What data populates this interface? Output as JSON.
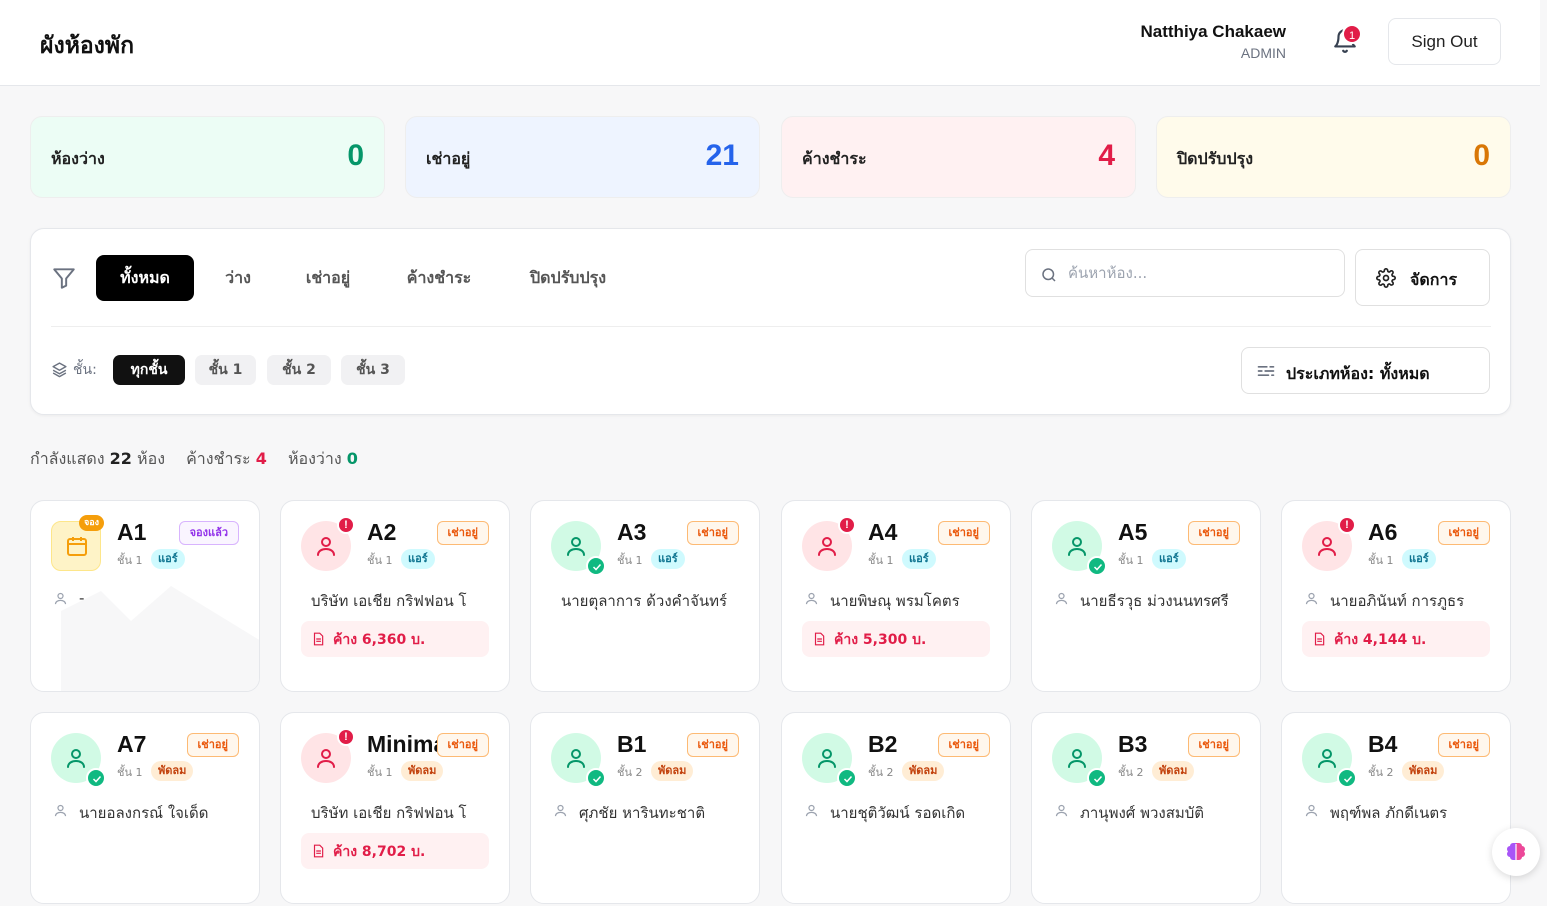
{
  "header": {
    "title": "ผังห้องพัก",
    "user_name": "Natthiya Chakaew",
    "user_role": "ADMIN",
    "notification_count": "1",
    "sign_out_label": "Sign Out"
  },
  "stats": [
    {
      "label": "ห้องว่าง",
      "value": "0",
      "color": "#059669",
      "bg": "#ecfdf5"
    },
    {
      "label": "เช่าอยู่",
      "value": "21",
      "color": "#2563eb",
      "bg": "#eef4ff"
    },
    {
      "label": "ค้างชำระ",
      "value": "4",
      "color": "#e11d48",
      "bg": "#fff1f2"
    },
    {
      "label": "ปิดปรับปรุง",
      "value": "0",
      "color": "#d97706",
      "bg": "#fffbeb"
    }
  ],
  "filters": {
    "tabs": [
      "ทั้งหมด",
      "ว่าง",
      "เช่าอยู่",
      "ค้างชำระ",
      "ปิดปรับปรุง"
    ],
    "active_tab": "ทั้งหมด",
    "search_placeholder": "ค้นหาห้อง...",
    "manage_label": "จัดการ",
    "floor_label": "ชั้น:",
    "floor_chips": [
      "ทุกชั้น",
      "ชั้น 1",
      "ชั้น 2",
      "ชั้น 3"
    ],
    "active_floor": "ทุกชั้น",
    "room_type_label": "ประเภทห้อง: ทั้งหมด"
  },
  "summary": {
    "showing_prefix": "กำลังแสดง",
    "showing_count": "22",
    "showing_suffix": "ห้อง",
    "overdue_label": "ค้างชำระ",
    "overdue_count": "4",
    "vacant_label": "ห้องว่าง",
    "vacant_count": "0"
  },
  "rooms": [
    {
      "code": "A1",
      "status": "จองแล้ว",
      "floor": "ชั้น 1",
      "type": "แอร์",
      "tenant": "-",
      "avatar": "booked",
      "book_tag": "จอง"
    },
    {
      "code": "A2",
      "status": "เช่าอยู่",
      "floor": "ชั้น 1",
      "type": "แอร์",
      "tenant": "บริษัท เอเชีย กริฟฟอน โ",
      "avatar": "overdue",
      "debt": "ค้าง 6,360 บ."
    },
    {
      "code": "A3",
      "status": "เช่าอยู่",
      "floor": "ชั้น 1",
      "type": "แอร์",
      "tenant": "นายตุลาการ ด้วงคำจันทร์",
      "avatar": "ok"
    },
    {
      "code": "A4",
      "status": "เช่าอยู่",
      "floor": "ชั้น 1",
      "type": "แอร์",
      "tenant": "นายพิษณุ พรมโคตร",
      "avatar": "overdue",
      "debt": "ค้าง 5,300 บ."
    },
    {
      "code": "A5",
      "status": "เช่าอยู่",
      "floor": "ชั้น 1",
      "type": "แอร์",
      "tenant": "นายธีรวุธ ม่วงนนทรศรี",
      "avatar": "ok"
    },
    {
      "code": "A6",
      "status": "เช่าอยู่",
      "floor": "ชั้น 1",
      "type": "แอร์",
      "tenant": "นายอภินันท์ การภูธร",
      "avatar": "overdue",
      "debt": "ค้าง 4,144 บ."
    },
    {
      "code": "A7",
      "status": "เช่าอยู่",
      "floor": "ชั้น 1",
      "type": "พัดลม",
      "tenant": "นายอลงกรณ์ ใจเด็ด",
      "avatar": "ok"
    },
    {
      "code": "Minimart",
      "status": "เช่าอยู่",
      "floor": "ชั้น 1",
      "type": "พัดลม",
      "tenant": "บริษัท เอเชีย กริฟฟอน โ",
      "avatar": "overdue",
      "debt": "ค้าง 8,702 บ."
    },
    {
      "code": "B1",
      "status": "เช่าอยู่",
      "floor": "ชั้น 2",
      "type": "พัดลม",
      "tenant": "ศุภชัย หารินทะชาติ",
      "avatar": "ok"
    },
    {
      "code": "B2",
      "status": "เช่าอยู่",
      "floor": "ชั้น 2",
      "type": "พัดลม",
      "tenant": "นายชุติวัฒน์ รอดเกิด",
      "avatar": "ok"
    },
    {
      "code": "B3",
      "status": "เช่าอยู่",
      "floor": "ชั้น 2",
      "type": "พัดลม",
      "tenant": "ภานุพงศ์ พวงสมบัติ",
      "avatar": "ok"
    },
    {
      "code": "B4",
      "status": "เช่าอยู่",
      "floor": "ชั้น 2",
      "type": "พัดลม",
      "tenant": "พฤฑ์พล ภักดีเนตร",
      "avatar": "ok"
    }
  ]
}
